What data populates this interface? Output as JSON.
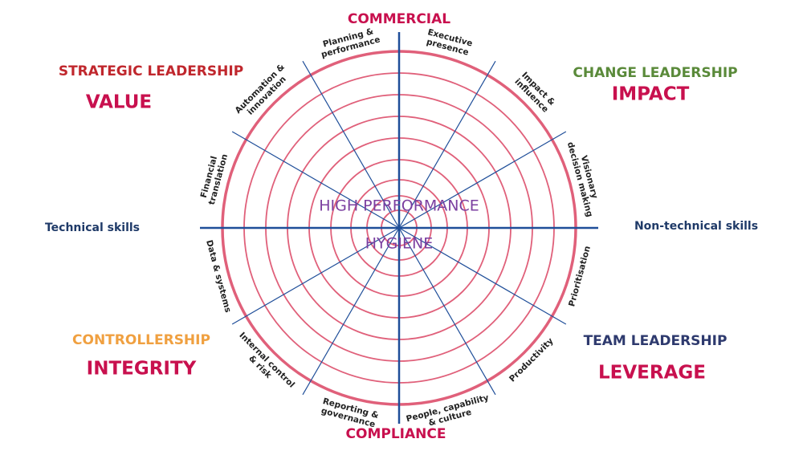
{
  "title": "COMMERCIAL",
  "bottom": "COMPLIANCE",
  "left_axis": "Technical skills",
  "right_axis": "Non-technical skills",
  "center_top": "HIGH PERFORMANCE",
  "center_bottom": "HYGIENE",
  "quadrants": [
    {
      "heading": "STRATEGIC LEADERSHIP",
      "word": "VALUE"
    },
    {
      "heading": "CHANGE LEADERSHIP",
      "word": "IMPACT"
    },
    {
      "heading": "CONTROLLERSHIP",
      "word": "INTEGRITY"
    },
    {
      "heading": "TEAM LEADERSHIP",
      "word": "LEVERAGE"
    }
  ],
  "segments": [
    {
      "lines": [
        "Executive",
        "presence"
      ]
    },
    {
      "lines": [
        "Impact &",
        "influence"
      ]
    },
    {
      "lines": [
        "Visionary",
        "decision making"
      ]
    },
    {
      "lines": [
        "Prioritisation"
      ]
    },
    {
      "lines": [
        "Productivity"
      ]
    },
    {
      "lines": [
        "People, capability",
        "& culture"
      ]
    },
    {
      "lines": [
        "Reporting &",
        "governance"
      ]
    },
    {
      "lines": [
        "Internal control",
        "& risk"
      ]
    },
    {
      "lines": [
        "Data & systems"
      ]
    },
    {
      "lines": [
        "Financial",
        "translation"
      ]
    },
    {
      "lines": [
        "Automation &",
        "innovation"
      ]
    },
    {
      "lines": [
        "Planning &",
        "performance"
      ]
    }
  ]
}
